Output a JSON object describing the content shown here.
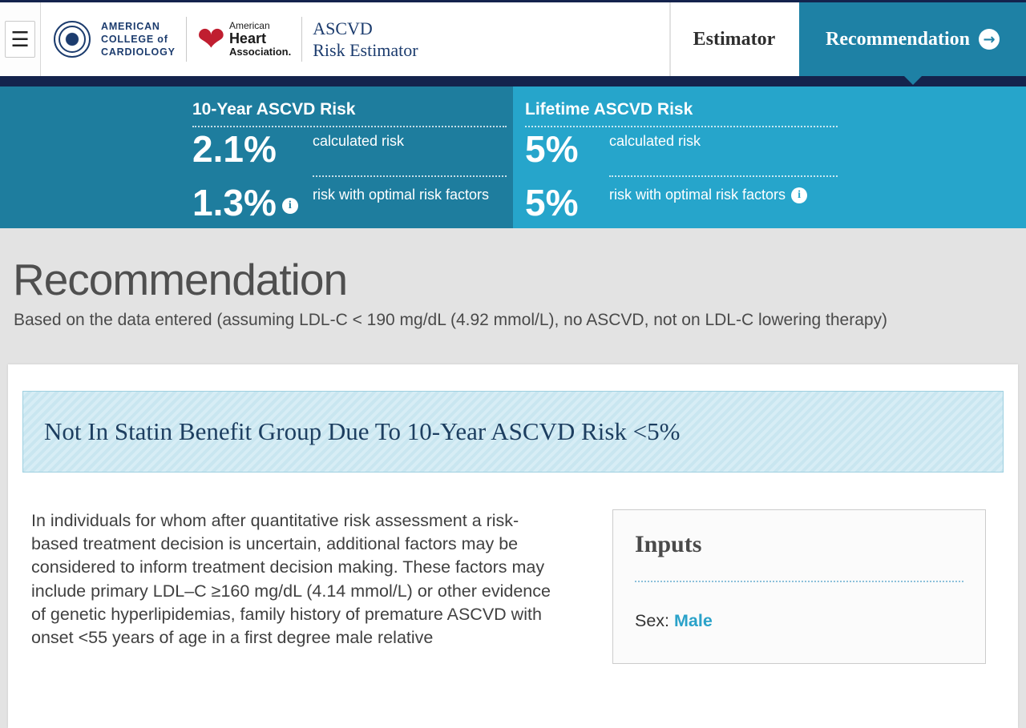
{
  "icons": {
    "menu": "☰",
    "arrow_right": "→",
    "info": "i",
    "heart": "❤"
  },
  "colors": {
    "navy": "#14234d",
    "teal_dark": "#1e7d9e",
    "teal_light": "#26a5cb",
    "tab_active": "#1e81a5",
    "accent_teal": "#2aa2c9"
  },
  "header": {
    "acc_logo": {
      "line1": "AMERICAN",
      "line2": "COLLEGE of",
      "line3": "CARDIOLOGY"
    },
    "aha_logo": {
      "line1": "American",
      "line2": "Heart",
      "line3": "Association."
    },
    "app_title_line1": "ASCVD",
    "app_title_line2": "Risk Estimator",
    "tabs": [
      {
        "label": "Estimator",
        "active": false
      },
      {
        "label": "Recommendation",
        "active": true
      }
    ]
  },
  "risk_summary": {
    "ten_year": {
      "title": "10-Year ASCVD Risk",
      "calculated_value": "2.1%",
      "calculated_label": "calculated risk",
      "optimal_value": "1.3%",
      "optimal_label": "risk with optimal risk factors"
    },
    "lifetime": {
      "title": "Lifetime ASCVD Risk",
      "calculated_value": "5%",
      "calculated_label": "calculated risk",
      "optimal_value": "5%",
      "optimal_label": "risk with optimal risk factors"
    }
  },
  "main": {
    "page_title": "Recommendation",
    "subtitle": "Based on the data entered (assuming LDL-C < 190 mg/dL (4.92 mmol/L), no ASCVD, not on LDL-C lowering therapy)",
    "banner": "Not In Statin Benefit Group Due To 10-Year ASCVD Risk <5%",
    "body_paragraph": "In individuals for whom after quantitative risk assessment a risk-based treatment decision is uncertain, additional factors may be considered to inform treatment decision making. These factors may include primary LDL–C ≥160 mg/dL (4.14 mmol/L) or other evidence of genetic hyperlipidemias, family history of premature ASCVD with onset <55 years of age in a first degree male relative",
    "inputs": {
      "title": "Inputs",
      "sex_label": "Sex:",
      "sex_value": "Male"
    }
  }
}
